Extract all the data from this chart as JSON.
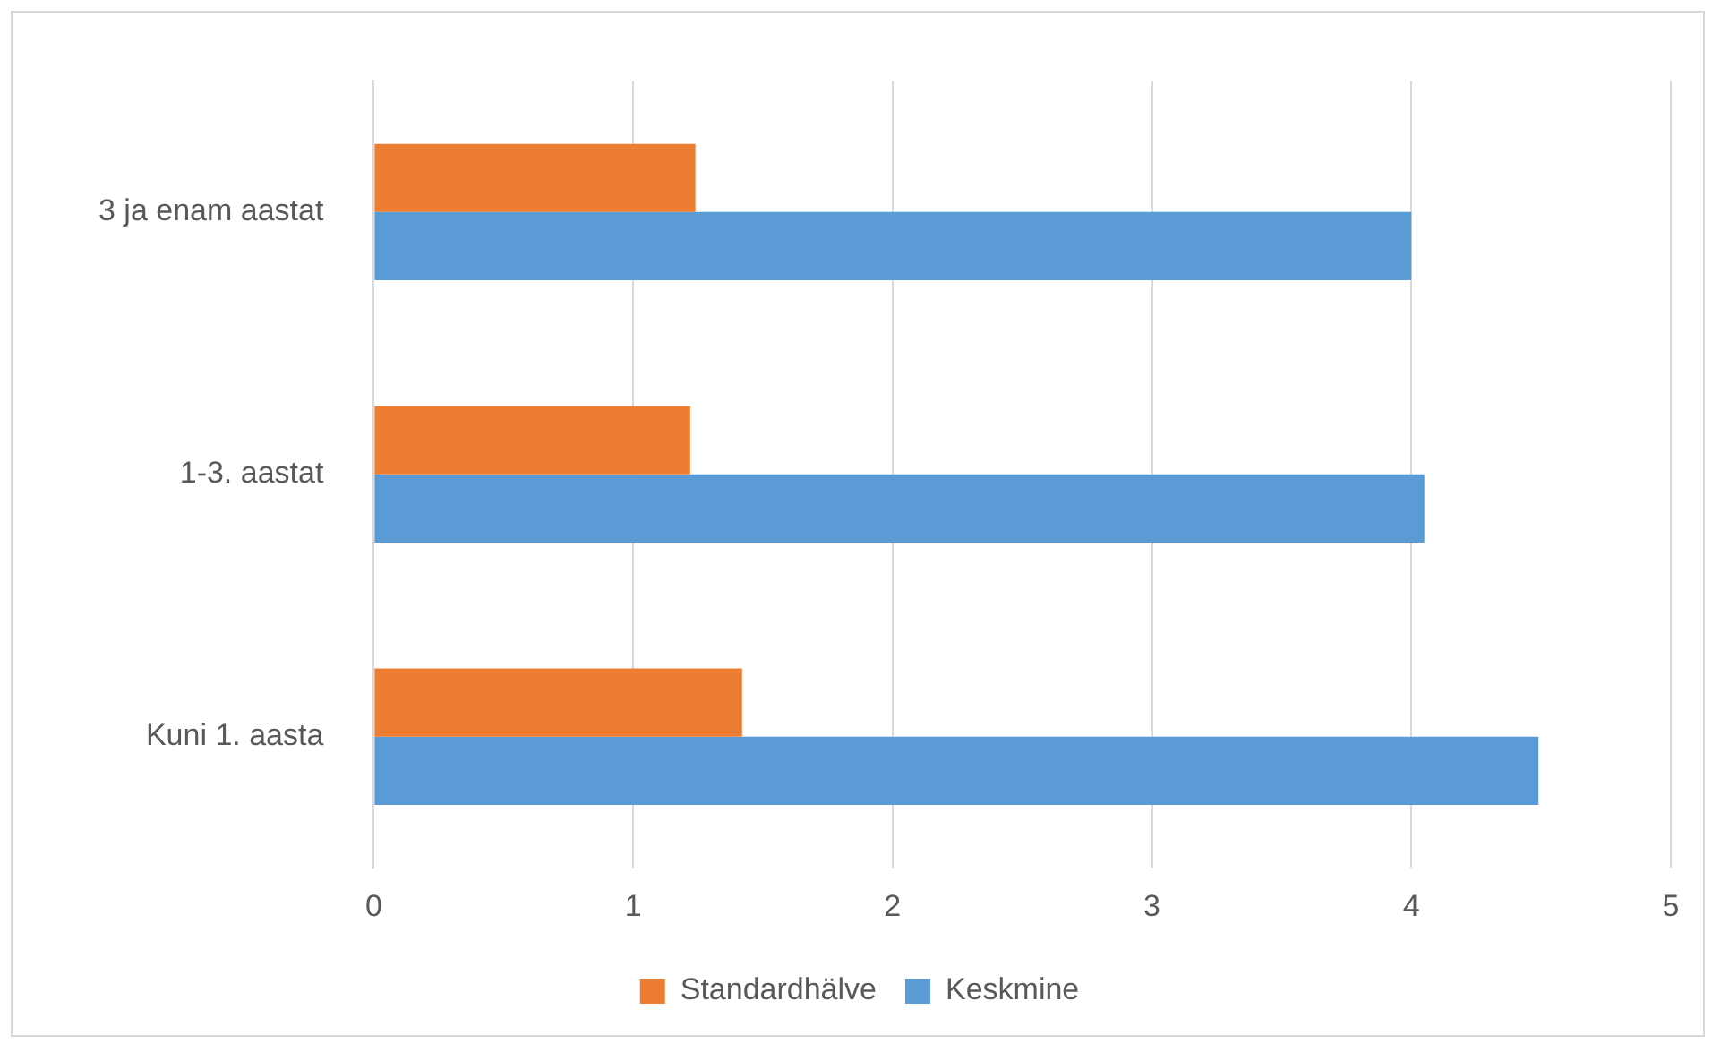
{
  "chart_data": {
    "type": "bar",
    "orientation": "horizontal",
    "categories": [
      "3 ja enam aastat",
      "1-3. aastat",
      "Kuni 1. aasta"
    ],
    "series": [
      {
        "name": "Standardhälve",
        "color": "#ed7d31",
        "values": [
          1.24,
          1.22,
          1.42
        ]
      },
      {
        "name": "Keskmine",
        "color": "#5b9bd5",
        "values": [
          4.0,
          4.05,
          4.49
        ]
      }
    ],
    "xlim": [
      0,
      5
    ],
    "xticks": [
      0,
      1,
      2,
      3,
      4,
      5
    ],
    "grid": "x",
    "legend": "bottom"
  }
}
